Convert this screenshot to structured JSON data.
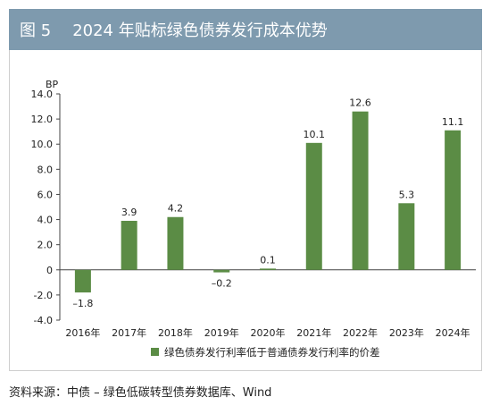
{
  "header": {
    "figure_no": "图 5",
    "title": "2024 年贴标绿色债券发行成本优势"
  },
  "source": "资料来源：中债 – 绿色低碳转型债券数据库、Wind",
  "colors": {
    "header_bg": "#7e9aae",
    "bar": "#5b8c45"
  },
  "chart_data": {
    "type": "bar",
    "title": "",
    "ylabel": "BP",
    "categories": [
      "2016年",
      "2017年",
      "2018年",
      "2019年",
      "2020年",
      "2021年",
      "2022年",
      "2023年",
      "2024年"
    ],
    "series": [
      {
        "name": "绿色债券发行利率低于普通债券发行利率的价差",
        "values": [
          -1.8,
          3.9,
          4.2,
          -0.2,
          0.1,
          10.1,
          12.6,
          5.3,
          11.1
        ]
      }
    ],
    "data_labels": [
      "–1.8",
      "3.9",
      "4.2",
      "–0.2",
      "0.1",
      "10.1",
      "12.6",
      "5.3",
      "11.1"
    ],
    "ylim": [
      -4.0,
      14.0
    ],
    "yticks": [
      -4.0,
      -2.0,
      0,
      2.0,
      4.0,
      6.0,
      8.0,
      10.0,
      12.0,
      14.0
    ],
    "ytick_labels": [
      "-4.0",
      "-2.0",
      "0",
      "2.0",
      "4.0",
      "6.0",
      "8.0",
      "10.0",
      "12.0",
      "14.0"
    ],
    "grid": false,
    "legend_position": "bottom"
  }
}
